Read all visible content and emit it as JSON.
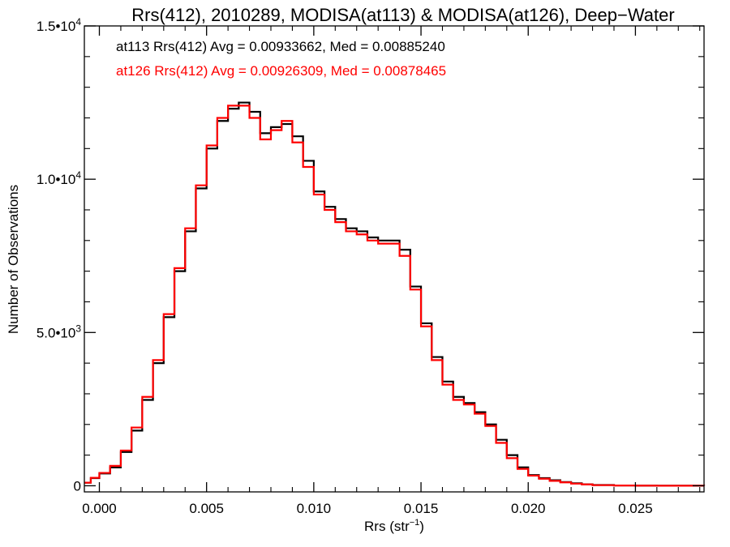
{
  "chart_data": {
    "type": "line",
    "title": "Rrs(412), 2010289, MODISA(at113) & MODISA(at126), Deep−Water",
    "xlabel_main": "Rrs (str",
    "xlabel_sup": "−1",
    "xlabel_end": ")",
    "ylabel": "Number of Observations",
    "xlim": [
      -0.0007,
      0.0282
    ],
    "ylim": [
      -200,
      15000
    ],
    "x_ticks": [
      0.0,
      0.005,
      0.01,
      0.015,
      0.02,
      0.025
    ],
    "x_tick_labels": [
      "0.000",
      "0.005",
      "0.010",
      "0.015",
      "0.020",
      "0.025"
    ],
    "y_ticks": [
      0,
      5000,
      10000,
      15000
    ],
    "y_tick_labels": [
      {
        "base": "0",
        "exp": ""
      },
      {
        "base": "5.0•10",
        "exp": "3"
      },
      {
        "base": "1.0•10",
        "exp": "4"
      },
      {
        "base": "1.5•10",
        "exp": "4"
      }
    ],
    "grid": false,
    "legend_position": "top-left",
    "series": [
      {
        "label": "at113 Rrs(412) Avg = 0.00933662, Med = 0.00885240",
        "color": "#000000",
        "step": true,
        "points": [
          [
            -0.0007,
            100
          ],
          [
            -0.0004,
            250
          ],
          [
            0.0,
            400
          ],
          [
            0.0005,
            600
          ],
          [
            0.001,
            1100
          ],
          [
            0.0015,
            1800
          ],
          [
            0.002,
            2800
          ],
          [
            0.0025,
            4000
          ],
          [
            0.003,
            5500
          ],
          [
            0.0035,
            7000
          ],
          [
            0.004,
            8300
          ],
          [
            0.0045,
            9700
          ],
          [
            0.005,
            11000
          ],
          [
            0.0055,
            11900
          ],
          [
            0.006,
            12300
          ],
          [
            0.0065,
            12500
          ],
          [
            0.007,
            12200
          ],
          [
            0.0075,
            11500
          ],
          [
            0.008,
            11700
          ],
          [
            0.0085,
            11800
          ],
          [
            0.009,
            11400
          ],
          [
            0.0095,
            10600
          ],
          [
            0.01,
            9600
          ],
          [
            0.0105,
            9100
          ],
          [
            0.011,
            8700
          ],
          [
            0.0115,
            8400
          ],
          [
            0.012,
            8300
          ],
          [
            0.0125,
            8100
          ],
          [
            0.013,
            8000
          ],
          [
            0.0135,
            8000
          ],
          [
            0.014,
            7700
          ],
          [
            0.0145,
            6500
          ],
          [
            0.015,
            5300
          ],
          [
            0.0155,
            4200
          ],
          [
            0.016,
            3400
          ],
          [
            0.0165,
            2900
          ],
          [
            0.017,
            2700
          ],
          [
            0.0175,
            2400
          ],
          [
            0.018,
            2000
          ],
          [
            0.0185,
            1500
          ],
          [
            0.019,
            1000
          ],
          [
            0.0195,
            600
          ],
          [
            0.02,
            350
          ],
          [
            0.0205,
            250
          ],
          [
            0.021,
            180
          ],
          [
            0.0215,
            120
          ],
          [
            0.022,
            80
          ],
          [
            0.0225,
            50
          ],
          [
            0.023,
            25
          ],
          [
            0.024,
            10
          ],
          [
            0.025,
            5
          ],
          [
            0.026,
            2
          ],
          [
            0.0282,
            0
          ]
        ]
      },
      {
        "label": "at126 Rrs(412) Avg = 0.00926309, Med = 0.00878465",
        "color": "#ff0000",
        "step": true,
        "points": [
          [
            -0.0007,
            100
          ],
          [
            -0.0004,
            260
          ],
          [
            0.0,
            420
          ],
          [
            0.0005,
            650
          ],
          [
            0.001,
            1150
          ],
          [
            0.0015,
            1900
          ],
          [
            0.002,
            2900
          ],
          [
            0.0025,
            4100
          ],
          [
            0.003,
            5600
          ],
          [
            0.0035,
            7100
          ],
          [
            0.004,
            8400
          ],
          [
            0.0045,
            9800
          ],
          [
            0.005,
            11100
          ],
          [
            0.0055,
            12000
          ],
          [
            0.006,
            12400
          ],
          [
            0.0065,
            12400
          ],
          [
            0.007,
            12000
          ],
          [
            0.0075,
            11300
          ],
          [
            0.008,
            11600
          ],
          [
            0.0085,
            11900
          ],
          [
            0.009,
            11200
          ],
          [
            0.0095,
            10400
          ],
          [
            0.01,
            9500
          ],
          [
            0.0105,
            9000
          ],
          [
            0.011,
            8600
          ],
          [
            0.0115,
            8300
          ],
          [
            0.012,
            8200
          ],
          [
            0.0125,
            8000
          ],
          [
            0.013,
            7900
          ],
          [
            0.0135,
            7900
          ],
          [
            0.014,
            7500
          ],
          [
            0.0145,
            6400
          ],
          [
            0.015,
            5200
          ],
          [
            0.0155,
            4100
          ],
          [
            0.016,
            3300
          ],
          [
            0.0165,
            2800
          ],
          [
            0.017,
            2650
          ],
          [
            0.0175,
            2350
          ],
          [
            0.018,
            1950
          ],
          [
            0.0185,
            1400
          ],
          [
            0.019,
            900
          ],
          [
            0.0195,
            550
          ],
          [
            0.02,
            330
          ],
          [
            0.0205,
            230
          ],
          [
            0.021,
            160
          ],
          [
            0.0215,
            110
          ],
          [
            0.022,
            70
          ],
          [
            0.0225,
            45
          ],
          [
            0.023,
            20
          ],
          [
            0.024,
            8
          ],
          [
            0.025,
            4
          ],
          [
            0.026,
            2
          ],
          [
            0.0282,
            0
          ]
        ]
      }
    ]
  }
}
